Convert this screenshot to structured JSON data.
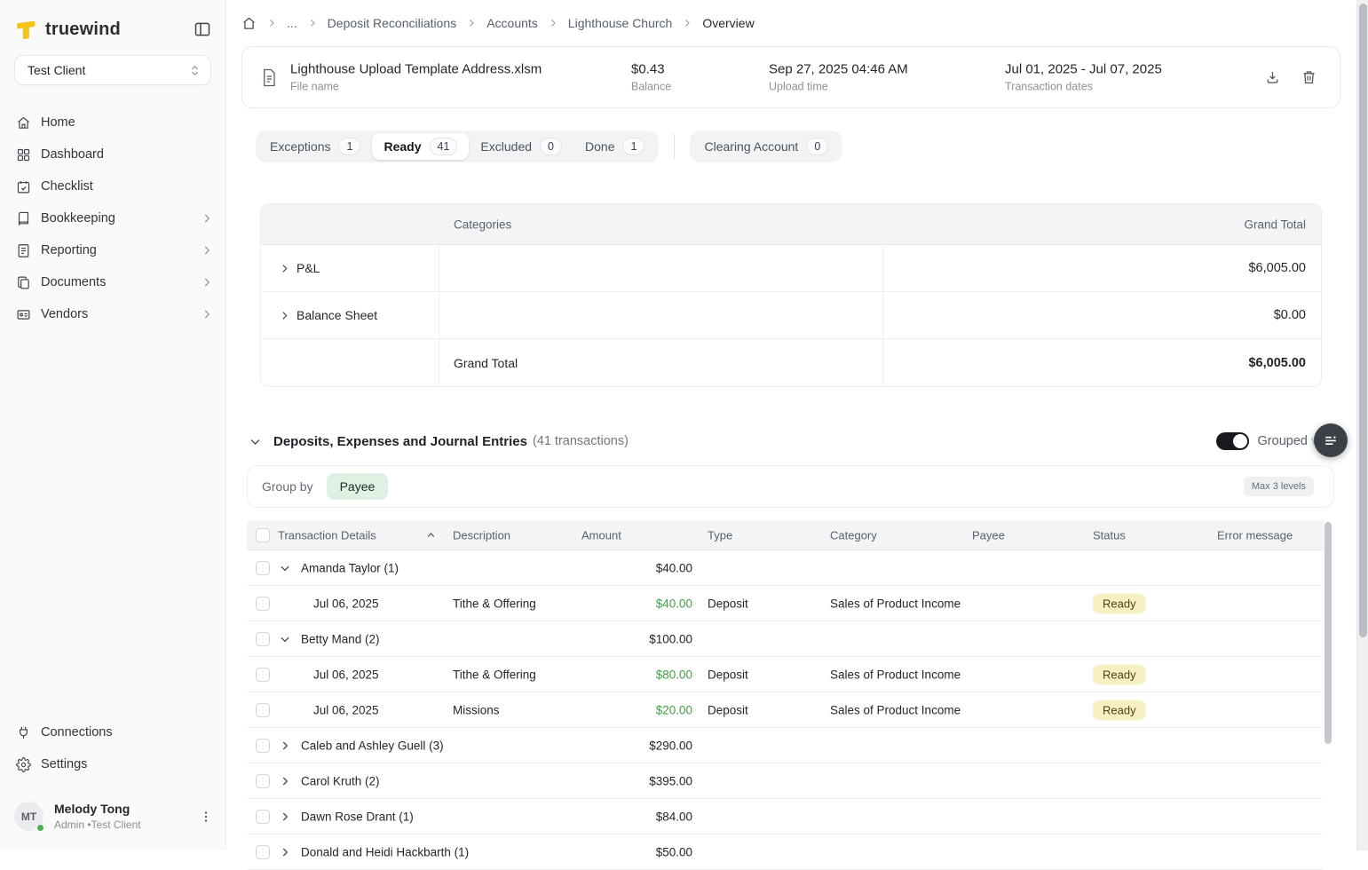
{
  "app": {
    "logo_text": "truewind"
  },
  "colors": {
    "brand_yellow": "#f6c51d",
    "amount_green": "#43a047",
    "ready_chip_bg": "#f6f0c2",
    "payee_chip_bg": "#ddf2e2",
    "toggle_on": "#17191d",
    "fab_bg": "#3b4046",
    "online_dot_green": "#4caf50"
  },
  "sidebar": {
    "client_selector": {
      "value": "Test Client"
    },
    "nav": [
      {
        "label": "Home",
        "icon": "home-icon",
        "expandable": false
      },
      {
        "label": "Dashboard",
        "icon": "dashboard-grid-icon",
        "expandable": false
      },
      {
        "label": "Checklist",
        "icon": "calendar-check-icon",
        "expandable": false
      },
      {
        "label": "Bookkeeping",
        "icon": "book-icon",
        "expandable": true
      },
      {
        "label": "Reporting",
        "icon": "report-file-icon",
        "expandable": true
      },
      {
        "label": "Documents",
        "icon": "documents-copy-icon",
        "expandable": true
      },
      {
        "label": "Vendors",
        "icon": "vendor-card-icon",
        "expandable": true
      }
    ],
    "footer_nav": [
      {
        "label": "Connections",
        "icon": "plug-icon"
      },
      {
        "label": "Settings",
        "icon": "gear-icon"
      }
    ],
    "user": {
      "initials": "MT",
      "name": "Melody Tong",
      "meta": "Admin •Test Client"
    }
  },
  "breadcrumb": {
    "items": [
      "...",
      "Deposit Reconciliations",
      "Accounts",
      "Lighthouse Church",
      "Overview"
    ]
  },
  "file_card": {
    "file_name": "Lighthouse Upload Template Address.xlsm",
    "file_name_label": "File name",
    "balance": "$0.43",
    "balance_label": "Balance",
    "upload_time": "Sep 27, 2025 04:46 AM",
    "upload_time_label": "Upload time",
    "transaction_dates": "Jul 01, 2025 - Jul 07, 2025",
    "transaction_dates_label": "Transaction dates"
  },
  "status_tabs": [
    {
      "label": "Exceptions",
      "count": "1",
      "selected": false
    },
    {
      "label": "Ready",
      "count": "41",
      "selected": true
    },
    {
      "label": "Excluded",
      "count": "0",
      "selected": false
    },
    {
      "label": "Done",
      "count": "1",
      "selected": false
    }
  ],
  "clearing_tab": {
    "label": "Clearing Account",
    "count": "0"
  },
  "categories_table": {
    "header": {
      "categories": "Categories",
      "grand_total": "Grand Total"
    },
    "rows": [
      {
        "label": "P&L",
        "amount": "$6,005.00"
      },
      {
        "label": "Balance Sheet",
        "amount": "$0.00"
      }
    ],
    "total_row": {
      "label": "Grand Total",
      "amount": "$6,005.00"
    }
  },
  "section": {
    "title": "Deposits, Expenses and Journal Entries",
    "subtitle": "(41 transactions)",
    "toggle_label": "Grouped view",
    "toggle_on": true
  },
  "group_by": {
    "label": "Group by",
    "value": "Payee",
    "max_levels": "Max 3 levels"
  },
  "transactions": {
    "columns": [
      "Transaction Details",
      "Description",
      "Amount",
      "Type",
      "Category",
      "Payee",
      "Status",
      "Error message"
    ],
    "rows": [
      {
        "kind": "group",
        "expanded": true,
        "name": "Amanda Taylor (1)",
        "amount": "$40.00"
      },
      {
        "kind": "child",
        "date": "Jul 06, 2025",
        "description": "Tithe & Offering",
        "amount": "$40.00",
        "type": "Deposit",
        "category": "Sales of Product Income",
        "status": "Ready"
      },
      {
        "kind": "group",
        "expanded": true,
        "name": "Betty Mand (2)",
        "amount": "$100.00"
      },
      {
        "kind": "child",
        "date": "Jul 06, 2025",
        "description": "Tithe & Offering",
        "amount": "$80.00",
        "type": "Deposit",
        "category": "Sales of Product Income",
        "status": "Ready"
      },
      {
        "kind": "child",
        "date": "Jul 06, 2025",
        "description": "Missions",
        "amount": "$20.00",
        "type": "Deposit",
        "category": "Sales of Product Income",
        "status": "Ready"
      },
      {
        "kind": "group",
        "expanded": false,
        "name": "Caleb and Ashley Guell (3)",
        "amount": "$290.00"
      },
      {
        "kind": "group",
        "expanded": false,
        "name": "Carol Kruth (2)",
        "amount": "$395.00"
      },
      {
        "kind": "group",
        "expanded": false,
        "name": "Dawn Rose Drant (1)",
        "amount": "$84.00"
      },
      {
        "kind": "group",
        "expanded": false,
        "name": "Donald and Heidi Hackbarth (1)",
        "amount": "$50.00"
      }
    ]
  }
}
